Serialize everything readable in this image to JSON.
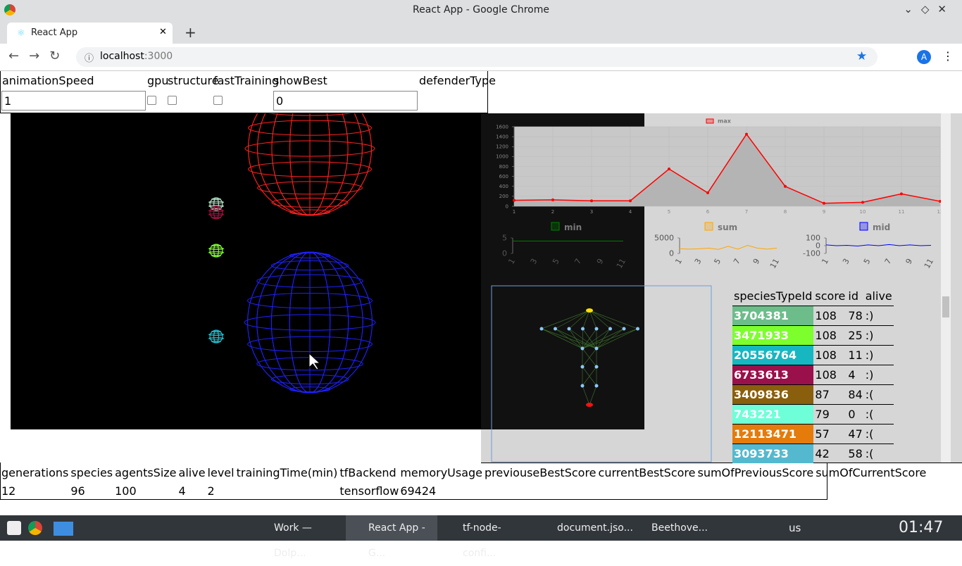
{
  "browser": {
    "window_title": "React App - Google Chrome",
    "tab": "React App",
    "url_host": "localhost",
    "url_port": ":3000",
    "avatar": "A"
  },
  "controls": {
    "labels": [
      "animationSpeed",
      "gpu",
      "structure",
      "fastTraining",
      "showBest",
      "defenderType"
    ],
    "animationSpeed": "1",
    "showBest": "0"
  },
  "chart_data": [
    {
      "type": "line",
      "categories": [
        1,
        2,
        3,
        4,
        5,
        6,
        7,
        8,
        9,
        10,
        11,
        12
      ],
      "series": [
        {
          "name": "max",
          "color": "#ff0000",
          "values": [
            120,
            130,
            110,
            110,
            750,
            270,
            1450,
            400,
            60,
            80,
            250,
            100
          ]
        }
      ],
      "ylim": [
        0,
        1600
      ],
      "yticks": [
        0,
        200,
        400,
        600,
        800,
        1000,
        1200,
        1400,
        1600
      ],
      "grid": true
    },
    {
      "type": "line",
      "categories": [
        1,
        null,
        3,
        null,
        5,
        null,
        7,
        null,
        9,
        null,
        11
      ],
      "series": [
        {
          "name": "min",
          "color": "#008000",
          "values": [
            4,
            4,
            4,
            4,
            4,
            4,
            4,
            4,
            4,
            4,
            4
          ]
        }
      ],
      "ylim": [
        0,
        5
      ],
      "yticks": [
        0,
        5
      ],
      "grid": false
    },
    {
      "type": "line",
      "categories": [
        1,
        null,
        3,
        null,
        5,
        null,
        7,
        null,
        9,
        null,
        11
      ],
      "series": [
        {
          "name": "sum",
          "color": "#ffa500",
          "values": [
            1500,
            1400,
            1500,
            1700,
            1300,
            2300,
            1400,
            2600,
            1700,
            1400,
            1700
          ]
        }
      ],
      "ylim": [
        0,
        5000
      ],
      "yticks": [
        0,
        5000
      ],
      "grid": false
    },
    {
      "type": "line",
      "categories": [
        1,
        null,
        3,
        null,
        5,
        null,
        7,
        null,
        9,
        null,
        11
      ],
      "series": [
        {
          "name": "mid",
          "color": "#0000ff",
          "values": [
            10,
            0,
            5,
            -5,
            10,
            0,
            15,
            0,
            10,
            0,
            5
          ]
        }
      ],
      "ylim": [
        -100,
        100
      ],
      "yticks": [
        -100,
        0,
        100
      ],
      "grid": false
    }
  ],
  "species_table": {
    "headers": [
      "speciesTypeId",
      "score",
      "id",
      "alive"
    ],
    "rows": [
      [
        "3704381",
        "108",
        "78",
        ":)"
      ],
      [
        "3471933",
        "108",
        "25",
        ":)"
      ],
      [
        "20556764",
        "108",
        "11",
        ":)"
      ],
      [
        "6733613",
        "108",
        "4",
        ":)"
      ],
      [
        "3409836",
        "87",
        "84",
        ":("
      ],
      [
        "743221",
        "79",
        "0",
        ":("
      ],
      [
        "12113471",
        "57",
        "47",
        ":("
      ],
      [
        "3093733",
        "42",
        "58",
        ":("
      ]
    ],
    "row_colors": [
      "#6cbd8a",
      "#7dff2e",
      "#17b7c1",
      "#99104a",
      "#895e0c",
      "#6effd8",
      "#e47b0b",
      "#54b9cf"
    ]
  },
  "stats": {
    "headers": [
      "generations",
      "species",
      "agentsSize",
      "alive",
      "level",
      "trainingTime(min)",
      "tfBackend",
      "memoryUsage",
      "previouseBestScore",
      "currentBestScore",
      "sumOfPreviousScore",
      "sumOfCurrentScore"
    ],
    "values": {
      "generations": "12",
      "species": "96",
      "agentsSize": "100",
      "alive": "4",
      "level": "2",
      "tfBackend": "tensorflow",
      "memoryUsage": "69424"
    }
  },
  "taskbar": {
    "items": [
      "Work — Dolp...",
      "React App - G...",
      "tf-node-confi...",
      "document.jso...",
      "Beethove..."
    ],
    "keyboard": "us",
    "clock": "01:47"
  }
}
